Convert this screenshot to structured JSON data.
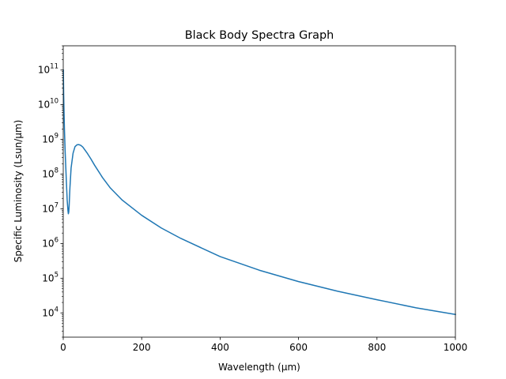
{
  "chart_data": {
    "type": "line",
    "title": "Black Body Spectra Graph",
    "xlabel": "Wavelength (μm)",
    "ylabel": "Specific Luminosity (Lsun/μm)",
    "xscale": "linear",
    "yscale": "log",
    "xlim": [
      0,
      1000
    ],
    "ylim": [
      2000,
      500000000000
    ],
    "xticks": [
      0,
      200,
      400,
      600,
      800,
      1000
    ],
    "xtick_labels": [
      "0",
      "200",
      "400",
      "600",
      "800",
      "1000"
    ],
    "ytick_exponents": [
      4,
      5,
      6,
      7,
      8,
      9,
      10,
      11
    ],
    "ytick_base": "10",
    "grid": false,
    "legend": "none",
    "series": [
      {
        "color": "#1f77b4",
        "x": [
          0.3,
          0.5,
          1,
          2,
          3,
          5,
          8,
          10,
          12,
          13,
          14,
          15,
          17,
          20,
          25,
          30,
          35,
          40,
          45,
          50,
          60,
          70,
          80,
          100,
          120,
          150,
          200,
          250,
          300,
          400,
          500,
          600,
          700,
          800,
          900,
          1000
        ],
        "y": [
          100000000000,
          60000000000,
          20000000000,
          6000000000,
          2000000000,
          400000000,
          60000000,
          18000000,
          9000000,
          7200000,
          8000000,
          12000000,
          40000000,
          150000000,
          400000000,
          620000000,
          700000000,
          710000000,
          670000000,
          600000000,
          420000000,
          280000000,
          180000000,
          80000000,
          40000000,
          18000000,
          6500000,
          2800000,
          1400000,
          420000,
          170000,
          80000,
          42000,
          24000,
          14000,
          9000
        ]
      }
    ]
  }
}
